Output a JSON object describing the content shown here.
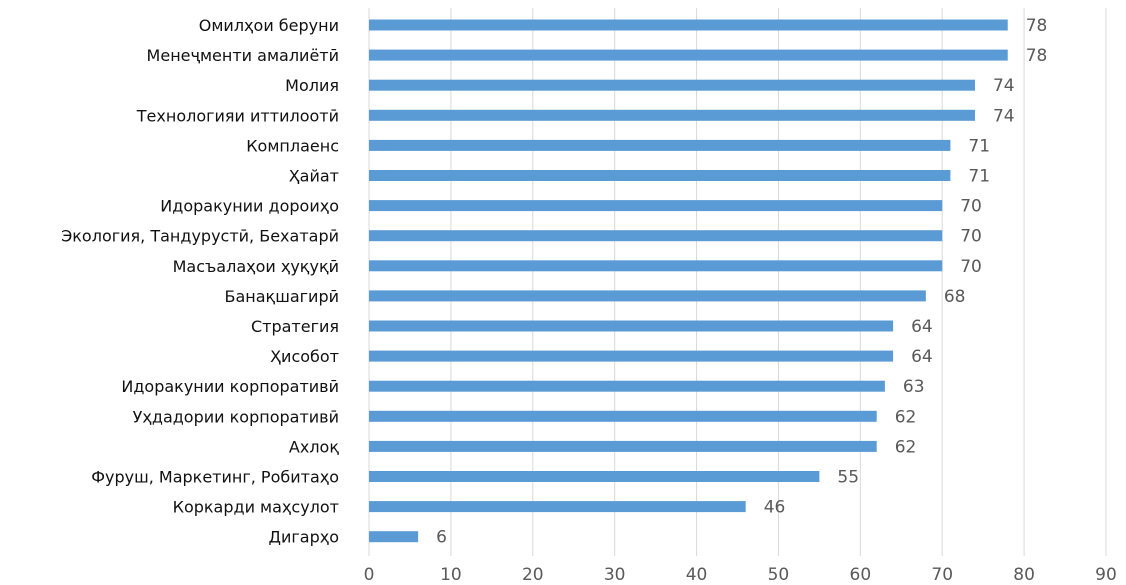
{
  "chart_data": {
    "type": "bar",
    "orientation": "horizontal",
    "title": "",
    "xlabel": "",
    "ylabel": "",
    "xlim": [
      0,
      90
    ],
    "x_ticks": [
      0,
      10,
      20,
      30,
      40,
      50,
      60,
      70,
      80,
      90
    ],
    "grid": true,
    "legend": "none",
    "bar_color": "#5b9bd5",
    "categories": [
      "Омилҳои беруни",
      "Менеҷменти амалиётӣ",
      "Молия",
      "Технологияи иттилоотӣ",
      "Комплаенс",
      "Ҳайат",
      "Идоракунии дороиҳо",
      "Экология, Тандурустӣ, Бехатарӣ",
      "Масъалаҳои ҳуқуқӣ",
      "Банақшагирӣ",
      "Стратегия",
      "Ҳисобот",
      "Идоракунии корпоративӣ",
      "Уҳдадории корпоративӣ",
      "Ахлоқ",
      "Фуруш, Маркетинг, Робитаҳо",
      "Коркарди маҳсулот",
      "Дигарҳо"
    ],
    "values": [
      78,
      78,
      74,
      74,
      71,
      71,
      70,
      70,
      70,
      68,
      64,
      64,
      63,
      62,
      62,
      55,
      46,
      6
    ]
  }
}
